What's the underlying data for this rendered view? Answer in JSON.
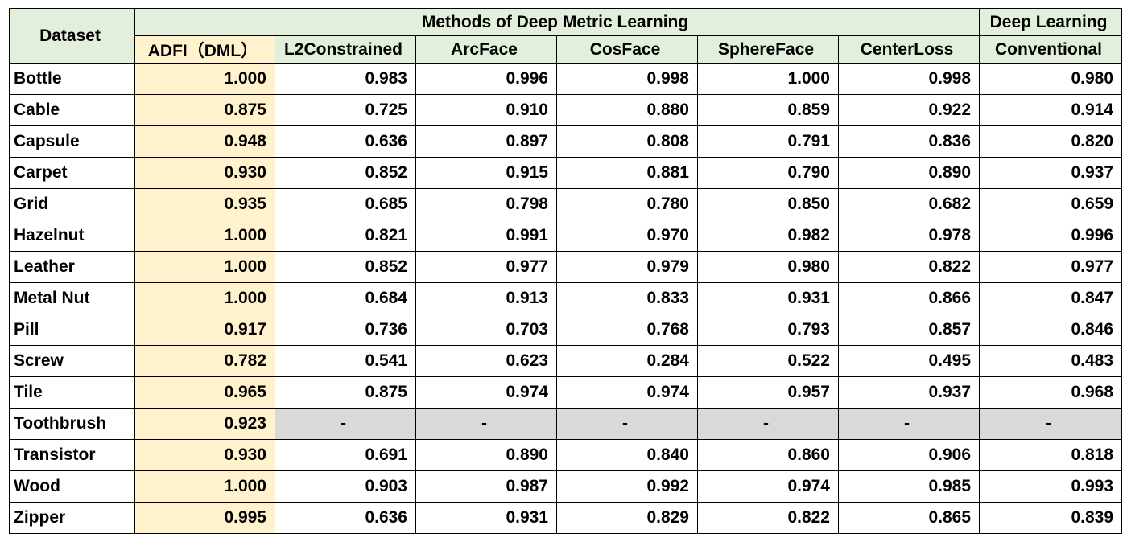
{
  "header": {
    "dataset_label": "Dataset",
    "dml_group_label": "Methods of Deep Metric Learning",
    "dl_group_label": "Deep Learning",
    "columns": [
      "ADFI（DML）",
      "L2Constrained",
      "ArcFace",
      "CosFace",
      "SphereFace",
      "CenterLoss",
      "Conventional"
    ]
  },
  "rows": [
    {
      "name": "Bottle",
      "values": [
        "1.000",
        "0.983",
        "0.996",
        "0.998",
        "1.000",
        "0.998",
        "0.980"
      ],
      "best": [
        true,
        false,
        false,
        false,
        true,
        false,
        false
      ]
    },
    {
      "name": "Cable",
      "values": [
        "0.875",
        "0.725",
        "0.910",
        "0.880",
        "0.859",
        "0.922",
        "0.914"
      ],
      "best": [
        false,
        false,
        false,
        false,
        false,
        true,
        false
      ]
    },
    {
      "name": "Capsule",
      "values": [
        "0.948",
        "0.636",
        "0.897",
        "0.808",
        "0.791",
        "0.836",
        "0.820"
      ],
      "best": [
        true,
        false,
        false,
        false,
        false,
        false,
        false
      ]
    },
    {
      "name": "Carpet",
      "values": [
        "0.930",
        "0.852",
        "0.915",
        "0.881",
        "0.790",
        "0.890",
        "0.937"
      ],
      "best": [
        false,
        false,
        false,
        false,
        false,
        false,
        true
      ]
    },
    {
      "name": "Grid",
      "values": [
        "0.935",
        "0.685",
        "0.798",
        "0.780",
        "0.850",
        "0.682",
        "0.659"
      ],
      "best": [
        true,
        false,
        false,
        false,
        false,
        false,
        false
      ]
    },
    {
      "name": "Hazelnut",
      "values": [
        "1.000",
        "0.821",
        "0.991",
        "0.970",
        "0.982",
        "0.978",
        "0.996"
      ],
      "best": [
        true,
        false,
        false,
        false,
        false,
        false,
        false
      ]
    },
    {
      "name": "Leather",
      "values": [
        "1.000",
        "0.852",
        "0.977",
        "0.979",
        "0.980",
        "0.822",
        "0.977"
      ],
      "best": [
        true,
        false,
        false,
        false,
        false,
        false,
        false
      ]
    },
    {
      "name": "Metal Nut",
      "values": [
        "1.000",
        "0.684",
        "0.913",
        "0.833",
        "0.931",
        "0.866",
        "0.847"
      ],
      "best": [
        true,
        false,
        false,
        false,
        false,
        false,
        false
      ]
    },
    {
      "name": "Pill",
      "values": [
        "0.917",
        "0.736",
        "0.703",
        "0.768",
        "0.793",
        "0.857",
        "0.846"
      ],
      "best": [
        true,
        false,
        false,
        false,
        false,
        false,
        false
      ]
    },
    {
      "name": "Screw",
      "values": [
        "0.782",
        "0.541",
        "0.623",
        "0.284",
        "0.522",
        "0.495",
        "0.483"
      ],
      "best": [
        true,
        false,
        false,
        false,
        false,
        false,
        false
      ]
    },
    {
      "name": "Tile",
      "values": [
        "0.965",
        "0.875",
        "0.974",
        "0.974",
        "0.957",
        "0.937",
        "0.968"
      ],
      "best": [
        false,
        false,
        true,
        true,
        false,
        false,
        false
      ]
    },
    {
      "name": "Toothbrush",
      "values": [
        "0.923",
        "-",
        "-",
        "-",
        "-",
        "-",
        "-"
      ],
      "best": [
        false,
        false,
        false,
        false,
        false,
        false,
        false
      ]
    },
    {
      "name": "Transistor",
      "values": [
        "0.930",
        "0.691",
        "0.890",
        "0.840",
        "0.860",
        "0.906",
        "0.818"
      ],
      "best": [
        true,
        false,
        false,
        false,
        false,
        false,
        false
      ]
    },
    {
      "name": "Wood",
      "values": [
        "1.000",
        "0.903",
        "0.987",
        "0.992",
        "0.974",
        "0.985",
        "0.993"
      ],
      "best": [
        true,
        false,
        false,
        false,
        false,
        false,
        false
      ]
    },
    {
      "name": "Zipper",
      "values": [
        "0.995",
        "0.636",
        "0.931",
        "0.829",
        "0.822",
        "0.865",
        "0.839"
      ],
      "best": [
        true,
        false,
        false,
        false,
        false,
        false,
        false
      ]
    }
  ],
  "colors": {
    "header_bg": "#e2efda",
    "adfi_bg": "#fff2cc",
    "missing_bg": "#d9d9d9",
    "best_text": "#ff0000",
    "text": "#000000"
  }
}
